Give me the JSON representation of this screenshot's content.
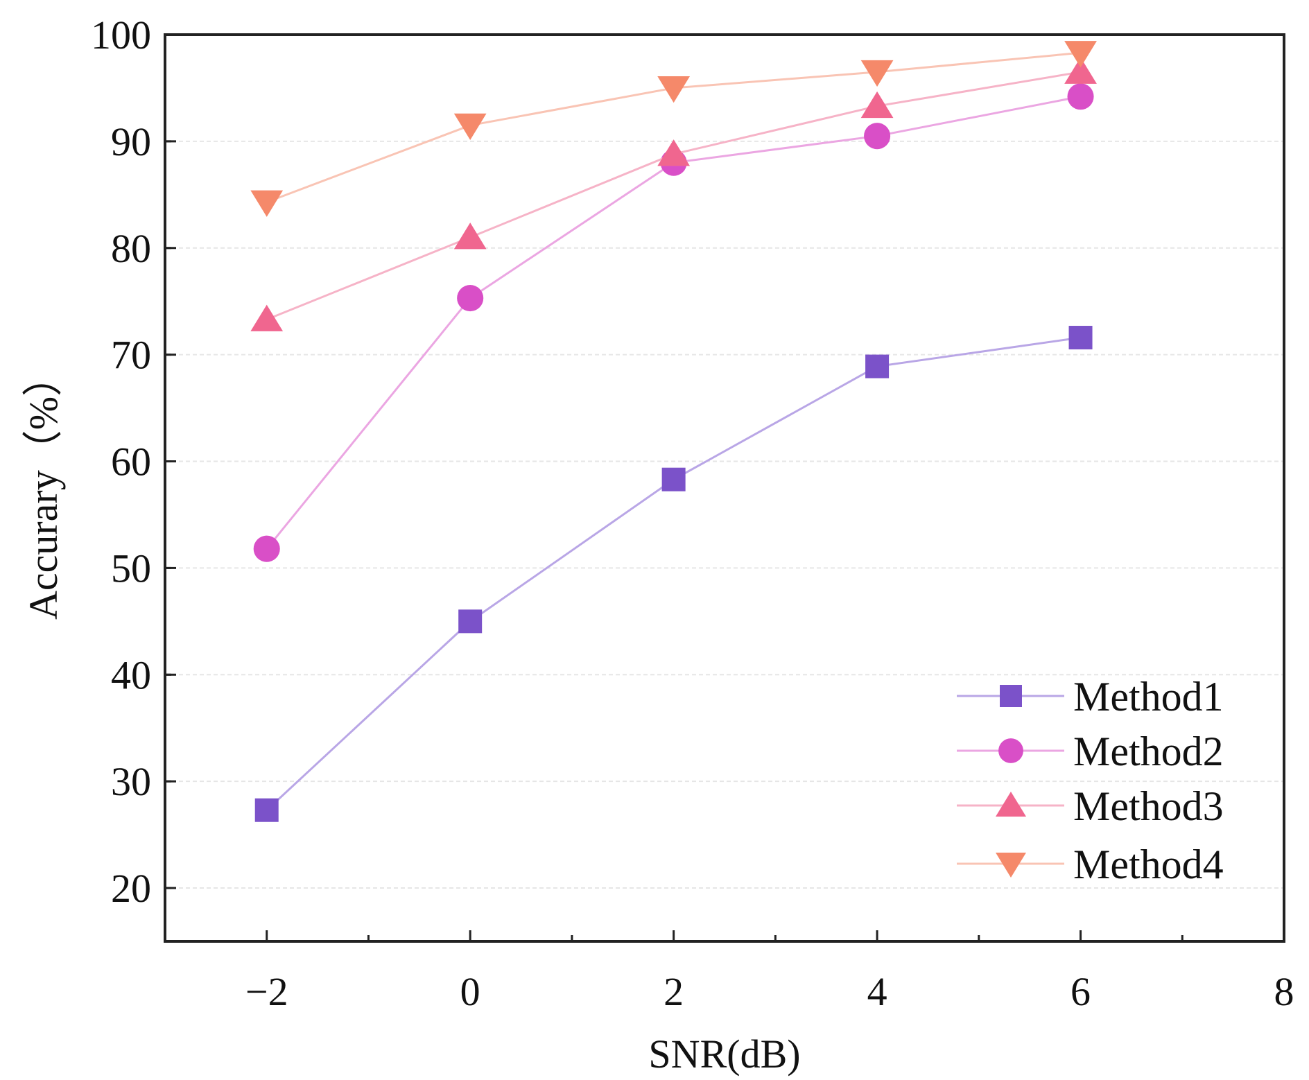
{
  "chart_data": {
    "type": "line",
    "title": "",
    "xlabel": "SNR(dB)",
    "ylabel": "Accurary（%）",
    "xlim": [
      -3,
      8
    ],
    "ylim": [
      15,
      100
    ],
    "xticks": [
      -2,
      0,
      2,
      4,
      6,
      8
    ],
    "xtick_labels": [
      "−2",
      "0",
      "2",
      "4",
      "6",
      "8"
    ],
    "yticks": [
      20,
      30,
      40,
      50,
      60,
      70,
      80,
      90,
      100
    ],
    "ytick_labels": [
      "20",
      "30",
      "40",
      "50",
      "60",
      "70",
      "80",
      "90",
      "100"
    ],
    "grid": "horizontal dashed",
    "legend_position": "bottom-right",
    "x": [
      -2,
      0,
      2,
      4,
      6
    ],
    "series": [
      {
        "name": "Method1",
        "marker": "square",
        "color": "#7b52c9",
        "line_color": "#b9a6e6",
        "values": [
          27.3,
          45.0,
          58.3,
          68.9,
          71.6
        ]
      },
      {
        "name": "Method2",
        "marker": "circle",
        "color": "#d94fc7",
        "line_color": "#eba6e2",
        "values": [
          51.8,
          75.3,
          88.0,
          90.5,
          94.2
        ]
      },
      {
        "name": "Method3",
        "marker": "triangle-up",
        "color": "#f0668f",
        "line_color": "#f6b3c7",
        "values": [
          73.3,
          81.0,
          88.8,
          93.3,
          96.5
        ]
      },
      {
        "name": "Method4",
        "marker": "triangle-down",
        "color": "#f5896a",
        "line_color": "#f9c4b4",
        "values": [
          84.3,
          91.5,
          95.0,
          96.5,
          98.3
        ]
      }
    ]
  }
}
